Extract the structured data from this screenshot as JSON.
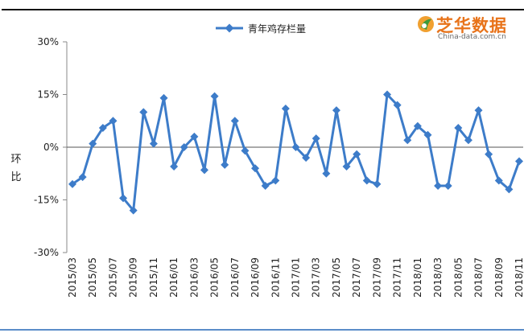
{
  "logo": {
    "name_cn": "芝华数据",
    "name_en": "China-data.com.cn"
  },
  "chart_data": {
    "type": "line",
    "title": "",
    "ylabel": "环比",
    "xlabel": "",
    "ylim": [
      -30,
      30
    ],
    "yticks": [
      30,
      15,
      0,
      -15,
      -30
    ],
    "ytick_labels": [
      "30%",
      "15%",
      "0%",
      "-15%",
      "-30%"
    ],
    "legend_position": "top-center",
    "grid": false,
    "color": "#3d7cc9",
    "x": [
      "2015/03",
      "2015/04",
      "2015/05",
      "2015/06",
      "2015/07",
      "2015/08",
      "2015/09",
      "2015/10",
      "2015/11",
      "2015/12",
      "2016/01",
      "2016/02",
      "2016/03",
      "2016/04",
      "2016/05",
      "2016/06",
      "2016/07",
      "2016/08",
      "2016/09",
      "2016/10",
      "2016/11",
      "2016/12",
      "2017/01",
      "2017/02",
      "2017/03",
      "2017/04",
      "2017/05",
      "2017/06",
      "2017/07",
      "2017/08",
      "2017/09",
      "2017/10",
      "2017/11",
      "2017/12",
      "2018/01",
      "2018/02",
      "2018/03",
      "2018/04",
      "2018/05",
      "2018/06",
      "2018/07",
      "2018/08",
      "2018/09",
      "2018/10",
      "2018/11"
    ],
    "tick_labels": [
      "2015/03",
      "2015/05",
      "2015/07",
      "2015/09",
      "2015/11",
      "2016/01",
      "2016/03",
      "2016/05",
      "2016/07",
      "2016/09",
      "2016/11",
      "2017/01",
      "2017/03",
      "2017/05",
      "2017/07",
      "2017/09",
      "2017/11",
      "2018/01",
      "2018/03",
      "2018/05",
      "2018/07",
      "2018/09",
      "2018/11"
    ],
    "series": [
      {
        "name": "青年鸡存栏量",
        "values": [
          -10.5,
          -8.5,
          1,
          5.5,
          7.5,
          -14.5,
          -18,
          10,
          1,
          14,
          -5.5,
          0,
          3,
          -6.5,
          14.5,
          -5,
          7.5,
          -1,
          -6,
          -11,
          -9.5,
          11,
          0,
          -3,
          2.5,
          -7.5,
          10.5,
          -5.5,
          -2,
          -9.5,
          -10.5,
          15,
          12,
          2,
          6,
          3.5,
          -11,
          -11,
          5.5,
          2,
          10.5,
          -2,
          -9.5,
          -12,
          -4
        ]
      }
    ]
  }
}
